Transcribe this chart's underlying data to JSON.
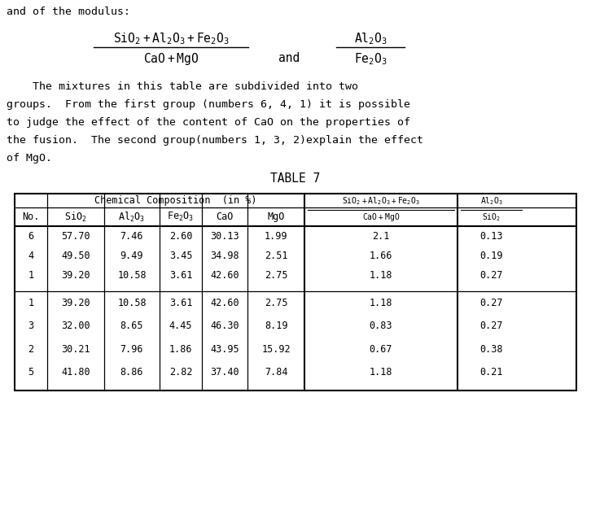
{
  "header_top_text": "and of the modulus:",
  "paragraph": [
    "    The mixtures in this table are subdivided into two",
    "groups.  From the first group (numbers 6, 4, 1) it is possible",
    "to judge the effect of the content of CaO on the properties of",
    "the fusion.  The second group(numbers 1, 3, 2)explain the effect",
    "of MgO."
  ],
  "table_title": "TABLE 7",
  "rows_group1": [
    [
      "6",
      "57.70",
      "7.46",
      "2.60",
      "30.13",
      "1.99",
      "2.1",
      "0.13"
    ],
    [
      "4",
      "49.50",
      "9.49",
      "3.45",
      "34.98",
      "2.51",
      "1.66",
      "0.19"
    ],
    [
      "1",
      "39.20",
      "10.58",
      "3.61",
      "42.60",
      "2.75",
      "1.18",
      "0.27"
    ]
  ],
  "rows_group2": [
    [
      "1",
      "39.20",
      "10.58",
      "3.61",
      "42.60",
      "2.75",
      "1.18",
      "0.27"
    ],
    [
      "3",
      "32.00",
      "8.65",
      "4.45",
      "46.30",
      "8.19",
      "0.83",
      "0.27"
    ],
    [
      "2",
      "30.21",
      "7.96",
      "1.86",
      "43.95",
      "15.92",
      "0.67",
      "0.38"
    ],
    [
      "5",
      "41.80",
      "8.86",
      "2.82",
      "37.40",
      "7.84",
      "1.18",
      "0.21"
    ]
  ],
  "bg_color": "#ffffff",
  "text_color": "#000000"
}
